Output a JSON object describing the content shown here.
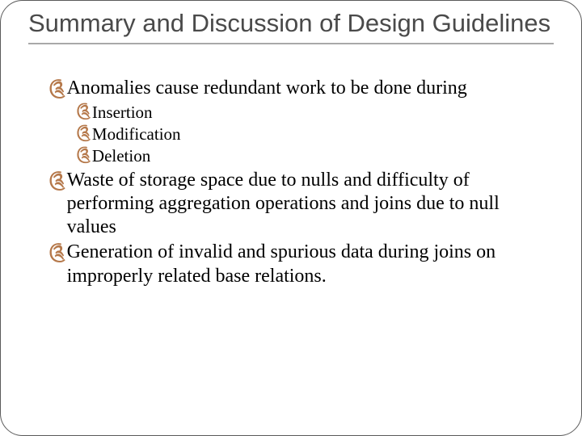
{
  "slide": {
    "title": "Summary and Discussion of Design Guidelines",
    "bullet_glyph": "༊",
    "bullet_color": "#b5784a",
    "title_color": "#4a4a4a",
    "title_fontsize": 31,
    "body_fontsize_lvl1": 24,
    "body_fontsize_lvl2": 21,
    "border_color": "#5a5a5a",
    "border_radius": 28,
    "underline_color": "#a8a8a8",
    "background_color": "#ffffff",
    "items": [
      {
        "text": "Anomalies cause redundant work to be done during",
        "children": [
          {
            "text": "Insertion"
          },
          {
            "text": "Modification"
          },
          {
            "text": "Deletion"
          }
        ]
      },
      {
        "text": "Waste of storage space due to nulls and difficulty of performing aggregation operations and joins due to null values"
      },
      {
        "text": "Generation of invalid and spurious data during joins on improperly related base relations."
      }
    ]
  }
}
